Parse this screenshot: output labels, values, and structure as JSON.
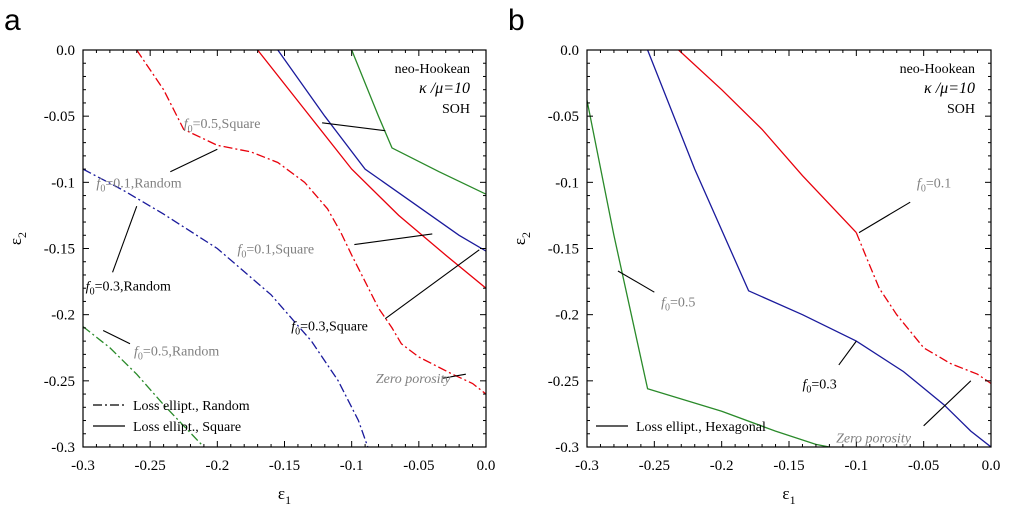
{
  "chart_data": [
    {
      "panel_label": "a",
      "type": "line",
      "xlabel": "ε1",
      "ylabel": "ε2",
      "xlim": [
        -0.3,
        0.0
      ],
      "ylim": [
        -0.3,
        0.0
      ],
      "xticks": [
        "-0.3",
        "-0.25",
        "-0.2",
        "-0.15",
        "-0.1",
        "-0.05",
        "0.0"
      ],
      "yticks": [
        "0.0",
        "-0.05",
        "-0.1",
        "-0.15",
        "-0.2",
        "-0.25",
        "-0.3"
      ],
      "grid": false,
      "info_text": [
        "neo-Hookean",
        "κ /μ=10",
        "SOH"
      ],
      "legend": {
        "placement": "bottom-left",
        "entries": [
          {
            "label": "Loss ellipt., Random",
            "style": "dashdot"
          },
          {
            "label": "Loss ellipt., Square",
            "style": "solid"
          }
        ]
      },
      "series": [
        {
          "color": "#e8000b",
          "style": "dashdot",
          "x": [
            -0.26,
            -0.24,
            -0.225,
            -0.2,
            -0.175,
            -0.155,
            -0.135,
            -0.118,
            -0.108,
            -0.1,
            -0.09,
            -0.08,
            -0.07,
            -0.063,
            -0.05,
            -0.025,
            -0.01,
            0.0
          ],
          "y": [
            0.0,
            -0.03,
            -0.06,
            -0.072,
            -0.077,
            -0.085,
            -0.1,
            -0.12,
            -0.138,
            -0.155,
            -0.175,
            -0.195,
            -0.21,
            -0.222,
            -0.232,
            -0.245,
            -0.252,
            -0.26
          ]
        },
        {
          "color": "#e8000b",
          "style": "solid",
          "x": [
            -0.17,
            -0.135,
            -0.1,
            -0.065,
            -0.03,
            0.0
          ],
          "y": [
            0.0,
            -0.045,
            -0.09,
            -0.125,
            -0.155,
            -0.18
          ]
        },
        {
          "color": "#1a1a9c",
          "style": "solid",
          "x": [
            -0.155,
            -0.12,
            -0.09,
            -0.055,
            -0.02,
            0.0
          ],
          "y": [
            0.0,
            -0.05,
            -0.09,
            -0.115,
            -0.14,
            -0.152
          ]
        },
        {
          "color": "#2a8a2a",
          "style": "solid",
          "x": [
            -0.1,
            -0.08,
            -0.07,
            -0.035,
            0.0
          ],
          "y": [
            0.0,
            -0.05,
            -0.074,
            -0.092,
            -0.109
          ]
        },
        {
          "color": "#1a1a9c",
          "style": "dashdot",
          "x": [
            -0.3,
            -0.27,
            -0.24,
            -0.2,
            -0.16,
            -0.13,
            -0.11,
            -0.095,
            -0.088
          ],
          "y": [
            -0.09,
            -0.106,
            -0.124,
            -0.15,
            -0.185,
            -0.22,
            -0.25,
            -0.28,
            -0.3
          ]
        },
        {
          "color": "#2a8a2a",
          "style": "dashdot",
          "x": [
            -0.3,
            -0.28,
            -0.26,
            -0.24,
            -0.225,
            -0.21
          ],
          "y": [
            -0.209,
            -0.225,
            -0.245,
            -0.268,
            -0.284,
            -0.3
          ]
        }
      ],
      "annotations": [
        {
          "text_f": "f",
          "sub": "0",
          "rest": "=0.5,Square",
          "color": "#808080",
          "italic": false,
          "tx": -0.225,
          "ty": -0.055,
          "leader": [
            [
              -0.122,
              -0.055
            ],
            [
              -0.075,
              -0.061
            ]
          ]
        },
        {
          "text_f": "f",
          "sub": "0",
          "rest": "=0.1,Random",
          "color": "#808080",
          "italic": false,
          "tx": -0.29,
          "ty": -0.1,
          "leader": [
            [
              -0.235,
              -0.092
            ],
            [
              -0.2,
              -0.075
            ]
          ]
        },
        {
          "text_f": "f",
          "sub": "0",
          "rest": "=0.1,Square",
          "color": "#808080",
          "italic": false,
          "tx": -0.185,
          "ty": -0.15,
          "leader": [
            [
              -0.098,
              -0.147
            ],
            [
              -0.04,
              -0.139
            ]
          ]
        },
        {
          "text_f": "f",
          "sub": "0",
          "rest": "=0.3,Random",
          "color": "#000000",
          "italic": false,
          "tx": -0.298,
          "ty": -0.178,
          "leader": [
            [
              -0.278,
              -0.168
            ],
            [
              -0.26,
              -0.118
            ]
          ]
        },
        {
          "text_f": "f",
          "sub": "0",
          "rest": "=0.3,Square",
          "color": "#000000",
          "italic": false,
          "tx": -0.145,
          "ty": -0.208,
          "leader": [
            [
              -0.075,
              -0.203
            ],
            [
              -0.005,
              -0.151
            ]
          ]
        },
        {
          "text_f": "f",
          "sub": "0",
          "rest": "=0.5,Random",
          "color": "#808080",
          "italic": false,
          "tx": -0.262,
          "ty": -0.227,
          "leader": [
            [
              -0.265,
              -0.222
            ],
            [
              -0.285,
              -0.212
            ]
          ]
        },
        {
          "text_f": "",
          "sub": "",
          "rest": "Zero porosity",
          "color": "#808080",
          "italic": true,
          "tx": -0.082,
          "ty": -0.248,
          "leader": [
            [
              -0.032,
              -0.248
            ],
            [
              -0.015,
              -0.245
            ]
          ]
        }
      ]
    },
    {
      "panel_label": "b",
      "type": "line",
      "xlabel": "ε1",
      "ylabel": "ε2",
      "xlim": [
        -0.3,
        0.0
      ],
      "ylim": [
        -0.3,
        0.0
      ],
      "xticks": [
        "-0.3",
        "-0.25",
        "-0.2",
        "-0.15",
        "-0.1",
        "-0.05",
        "0.0"
      ],
      "yticks": [
        "0.0",
        "-0.05",
        "-0.1",
        "-0.15",
        "-0.2",
        "-0.25",
        "-0.3"
      ],
      "grid": false,
      "info_text": [
        "neo-Hookean",
        "κ /μ=10",
        "SOH"
      ],
      "legend": {
        "placement": "bottom-left",
        "entries": [
          {
            "label": "Loss ellipt., Hexagonal",
            "style": "solid"
          }
        ]
      },
      "series": [
        {
          "color": "#e8000b",
          "style": "solid",
          "x": [
            -0.232,
            -0.2,
            -0.17,
            -0.14,
            -0.1
          ],
          "y": [
            0.0,
            -0.03,
            -0.06,
            -0.095,
            -0.138
          ]
        },
        {
          "color": "#e8000b",
          "style": "dashdot",
          "x": [
            -0.1,
            -0.092,
            -0.083,
            -0.07,
            -0.05,
            -0.03,
            -0.01,
            0.0
          ],
          "y": [
            -0.138,
            -0.158,
            -0.18,
            -0.2,
            -0.225,
            -0.237,
            -0.245,
            -0.252
          ]
        },
        {
          "color": "#1a1a9c",
          "style": "solid",
          "x": [
            -0.255,
            -0.22,
            -0.18,
            -0.14,
            -0.1,
            -0.065,
            -0.035,
            -0.015,
            0.0
          ],
          "y": [
            0.0,
            -0.09,
            -0.182,
            -0.2,
            -0.22,
            -0.243,
            -0.268,
            -0.288,
            -0.3
          ]
        },
        {
          "color": "#2a8a2a",
          "style": "solid",
          "x": [
            -0.3,
            -0.28,
            -0.255,
            -0.2,
            -0.16,
            -0.13,
            -0.12
          ],
          "y": [
            -0.038,
            -0.14,
            -0.256,
            -0.273,
            -0.288,
            -0.298,
            -0.3
          ]
        }
      ],
      "annotations": [
        {
          "text_f": "f",
          "sub": "0",
          "rest": "=0.1",
          "color": "#808080",
          "italic": false,
          "tx": -0.055,
          "ty": -0.1,
          "leader": [
            [
              -0.06,
              -0.115
            ],
            [
              -0.098,
              -0.138
            ]
          ]
        },
        {
          "text_f": "f",
          "sub": "0",
          "rest": "=0.5",
          "color": "#808080",
          "italic": false,
          "tx": -0.245,
          "ty": -0.19,
          "leader": [
            [
              -0.25,
              -0.183
            ],
            [
              -0.277,
              -0.167
            ]
          ]
        },
        {
          "text_f": "f",
          "sub": "0",
          "rest": "=0.3",
          "color": "#000000",
          "italic": false,
          "tx": -0.14,
          "ty": -0.252,
          "leader": [
            [
              -0.113,
              -0.238
            ],
            [
              -0.1,
              -0.22
            ]
          ]
        },
        {
          "text_f": "",
          "sub": "",
          "rest": "Zero porosity",
          "color": "#808080",
          "italic": true,
          "tx": -0.115,
          "ty": -0.293,
          "leader": [
            [
              -0.05,
              -0.284
            ],
            [
              -0.015,
              -0.25
            ]
          ]
        }
      ]
    }
  ]
}
